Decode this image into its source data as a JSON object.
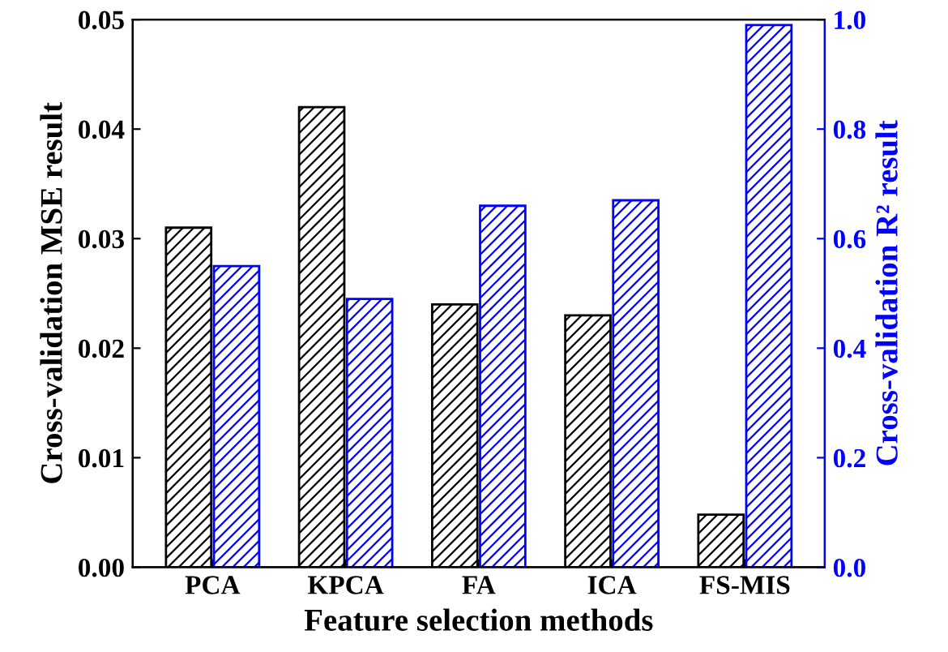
{
  "chart_data": {
    "type": "bar",
    "categories": [
      "PCA",
      "KPCA",
      "FA",
      "ICA",
      "FS-MIS"
    ],
    "xlabel": "Feature selection methods",
    "ylabel": "Cross-validation MSE result",
    "y2label": "Cross-validation R² result",
    "series": [
      {
        "color": "#000000",
        "values": [
          0.031,
          0.042,
          0.024,
          0.023,
          0.0048
        ]
      },
      {
        "color": "#0000ff",
        "axis": "y2",
        "values": [
          0.55,
          0.49,
          0.66,
          0.67,
          0.99
        ]
      }
    ],
    "ylim": [
      0,
      0.05
    ],
    "yticks": [
      {
        "value": 0,
        "label": "0.00"
      },
      0.01,
      0.02,
      0.03,
      0.04,
      0.05
    ],
    "y2lim": [
      0,
      1.0
    ],
    "y2ticks": [
      {
        "value": 0,
        "label": "0.0"
      },
      0.2,
      0.4,
      0.6,
      0.8,
      {
        "value": 1.0,
        "label": "1.0"
      }
    ],
    "grid": false,
    "legend": false
  }
}
